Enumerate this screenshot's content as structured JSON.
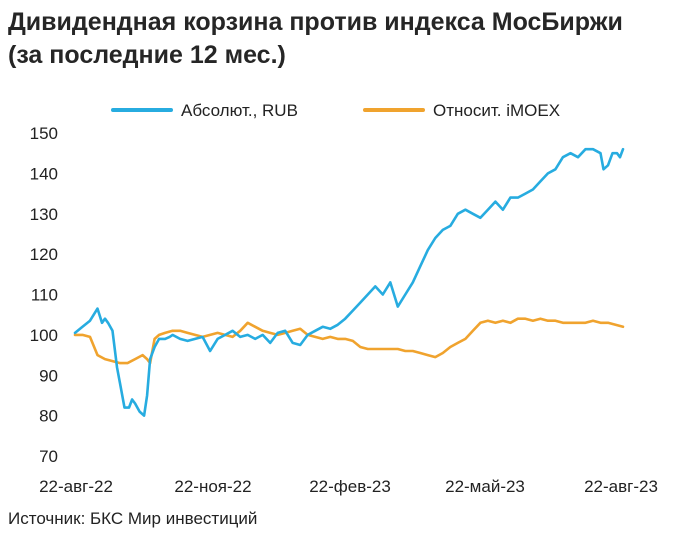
{
  "title_line1": "Дивидендная корзина против индекса МосБиржи",
  "title_line2": "(за последние 12 мес.)",
  "source": "Источник: БКС Мир инвестиций",
  "chart_data": {
    "type": "line",
    "title": "Дивидендная корзина против индекса МосБиржи (за последние 12 мес.)",
    "xlabel": "",
    "ylabel": "",
    "ylim": [
      70,
      150
    ],
    "yticks": [
      70,
      80,
      90,
      100,
      110,
      120,
      130,
      140,
      150
    ],
    "xticks": [
      "22-авг-22",
      "22-ноя-22",
      "22-фев-23",
      "22-май-23",
      "22-авг-23"
    ],
    "grid": false,
    "legend_position": "top",
    "x_index_note_values": [
      0,
      10,
      13,
      16,
      19,
      22,
      25,
      28,
      31,
      34,
      37,
      40,
      43,
      46,
      49,
      52,
      55,
      58,
      61,
      64,
      67,
      70,
      73,
      76,
      79,
      82,
      85,
      88,
      91,
      94,
      97,
      100,
      103,
      106,
      109,
      112,
      115,
      118,
      121,
      124,
      127,
      130,
      133,
      136,
      139,
      142,
      145,
      148,
      151,
      154,
      157,
      160,
      163,
      166,
      169,
      172,
      175,
      178,
      181,
      184,
      187,
      190,
      193,
      196,
      199,
      202,
      205,
      208,
      211,
      214,
      217,
      220,
      223,
      226,
      229,
      232,
      235,
      238,
      241,
      244,
      247,
      250,
      253,
      256,
      259,
      262,
      265,
      268,
      271,
      274,
      277,
      280,
      283,
      286,
      289,
      292,
      295,
      298,
      301,
      304,
      307,
      310,
      313,
      316,
      319,
      322,
      325,
      328,
      331,
      334,
      337,
      340,
      343,
      346,
      349,
      352,
      355,
      358,
      361,
      365
    ],
    "series": [
      {
        "name": "Абсолют., RUB",
        "color": "#27ACE0",
        "x": [
          0,
          5,
          10,
          15,
          18,
          20,
          22,
          25,
          28,
          30,
          33,
          36,
          38,
          40,
          43,
          46,
          48,
          50,
          53,
          56,
          60,
          63,
          65,
          70,
          75,
          80,
          85,
          90,
          95,
          100,
          105,
          110,
          115,
          120,
          125,
          130,
          135,
          140,
          145,
          150,
          155,
          160,
          165,
          170,
          175,
          180,
          185,
          190,
          195,
          200,
          205,
          210,
          215,
          220,
          225,
          230,
          235,
          240,
          245,
          250,
          255,
          260,
          265,
          270,
          275,
          280,
          285,
          290,
          295,
          300,
          305,
          310,
          315,
          320,
          325,
          330,
          335,
          340,
          345,
          350,
          352,
          355,
          358,
          361,
          363,
          365
        ],
        "values": [
          100.5,
          102,
          103.5,
          106.5,
          103,
          104,
          103,
          101,
          92,
          88,
          82,
          82,
          84,
          83,
          81,
          80,
          85,
          94,
          97,
          99,
          99,
          99.5,
          100,
          99,
          98.5,
          99,
          99.5,
          96,
          99,
          100,
          101,
          99.5,
          100,
          99,
          100,
          98,
          100.5,
          101,
          98,
          97.5,
          100,
          101,
          102,
          101.5,
          102.5,
          104,
          106,
          108,
          110,
          112,
          110,
          113,
          107,
          110,
          113,
          117,
          121,
          124,
          126,
          127,
          130,
          131,
          130,
          129,
          131,
          133,
          131,
          134,
          134,
          135,
          136,
          138,
          140,
          141,
          144,
          145,
          144,
          146,
          146,
          145,
          141,
          142,
          145,
          145,
          144,
          146
        ]
      },
      {
        "name": "Относит. iMOEX",
        "color": "#F0A32E",
        "x": [
          0,
          5,
          10,
          15,
          20,
          25,
          30,
          35,
          40,
          45,
          48,
          50,
          53,
          56,
          60,
          65,
          70,
          75,
          80,
          85,
          90,
          95,
          100,
          105,
          110,
          115,
          120,
          125,
          130,
          135,
          140,
          145,
          150,
          155,
          160,
          165,
          170,
          175,
          180,
          185,
          190,
          195,
          200,
          205,
          210,
          215,
          220,
          225,
          230,
          235,
          240,
          245,
          250,
          255,
          260,
          265,
          270,
          275,
          280,
          285,
          290,
          295,
          300,
          305,
          310,
          315,
          320,
          325,
          330,
          335,
          340,
          345,
          350,
          355,
          360,
          365
        ],
        "values": [
          100,
          100,
          99.5,
          95,
          94,
          93.5,
          93,
          93,
          94,
          95,
          94,
          93,
          99,
          100,
          100.5,
          101,
          101,
          100.5,
          100,
          99.5,
          100,
          100.5,
          100,
          99.5,
          101,
          103,
          102,
          101,
          100.5,
          100,
          100.5,
          101,
          101.5,
          100,
          99.5,
          99,
          99.5,
          99,
          99,
          98.5,
          97,
          96.5,
          96.5,
          96.5,
          96.5,
          96.5,
          96,
          96,
          95.5,
          95,
          94.5,
          95.5,
          97,
          98,
          99,
          101,
          103,
          103.5,
          103,
          103.5,
          103,
          104,
          104,
          103.5,
          104,
          103.5,
          103.5,
          103,
          103,
          103,
          103,
          103.5,
          103,
          103,
          102.5,
          102
        ]
      }
    ]
  }
}
